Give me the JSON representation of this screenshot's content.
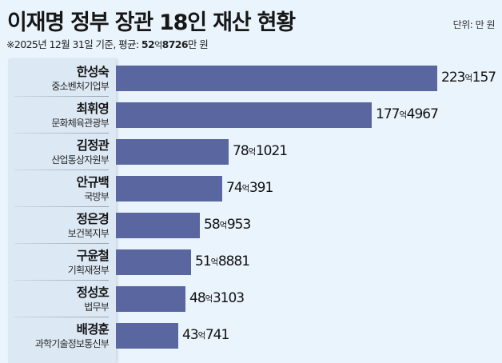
{
  "header": {
    "title": "이재명 정부 장관 18인 재산 현황",
    "subtitle_prefix": "※2025년 12월 31일 기준,  평균: ",
    "avg_eok": "52",
    "avg_eok_unit": "억",
    "avg_man": "8726",
    "avg_suffix": "만 원",
    "unit_label": "단위: 만 원"
  },
  "colors": {
    "background": "#eaf4fc",
    "label_panel": "#dce8f4",
    "bar": "#5a66a0",
    "text": "#161616"
  },
  "rows": [
    {
      "name": "한성숙",
      "ministry": "중소벤처기업부",
      "eok": "223",
      "man": "157",
      "value_manwon": 2230157
    },
    {
      "name": "최휘영",
      "ministry": "문화체육관광부",
      "eok": "177",
      "man": "4967",
      "value_manwon": 1774967
    },
    {
      "name": "김정관",
      "ministry": "산업통상자원부",
      "eok": "78",
      "man": "1021",
      "value_manwon": 781021
    },
    {
      "name": "안규백",
      "ministry": "국방부",
      "eok": "74",
      "man": "391",
      "value_manwon": 740391
    },
    {
      "name": "정은경",
      "ministry": "보건복지부",
      "eok": "58",
      "man": "953",
      "value_manwon": 580953
    },
    {
      "name": "구윤철",
      "ministry": "기획재정부",
      "eok": "51",
      "man": "8881",
      "value_manwon": 518881
    },
    {
      "name": "정성호",
      "ministry": "법무부",
      "eok": "48",
      "man": "3103",
      "value_manwon": 483103
    },
    {
      "name": "배경훈",
      "ministry": "과학기술정보통신부",
      "eok": "43",
      "man": "741",
      "value_manwon": 430741
    }
  ],
  "eok_unit": "억",
  "chart_data": {
    "type": "bar",
    "orientation": "horizontal",
    "title": "이재명 정부 장관 18인 재산 현황",
    "subtitle": "※2025년 12월 31일 기준, 평균: 52억8726만 원",
    "unit": "만 원",
    "xlabel": "",
    "ylabel": "",
    "grid": false,
    "legend": null,
    "categories": [
      "한성숙 (중소벤처기업부)",
      "최휘영 (문화체육관광부)",
      "김정관 (산업통상자원부)",
      "안규백 (국방부)",
      "정은경 (보건복지부)",
      "구윤철 (기획재정부)",
      "정성호 (법무부)",
      "배경훈 (과학기술정보통신부)"
    ],
    "values": [
      2230157,
      1774967,
      781021,
      740391,
      580953,
      518881,
      483103,
      430741
    ],
    "value_labels": [
      "223억157",
      "177억4967",
      "78억1021",
      "74억391",
      "58억953",
      "51억8881",
      "48억3103",
      "43억741"
    ],
    "average": 528726
  }
}
